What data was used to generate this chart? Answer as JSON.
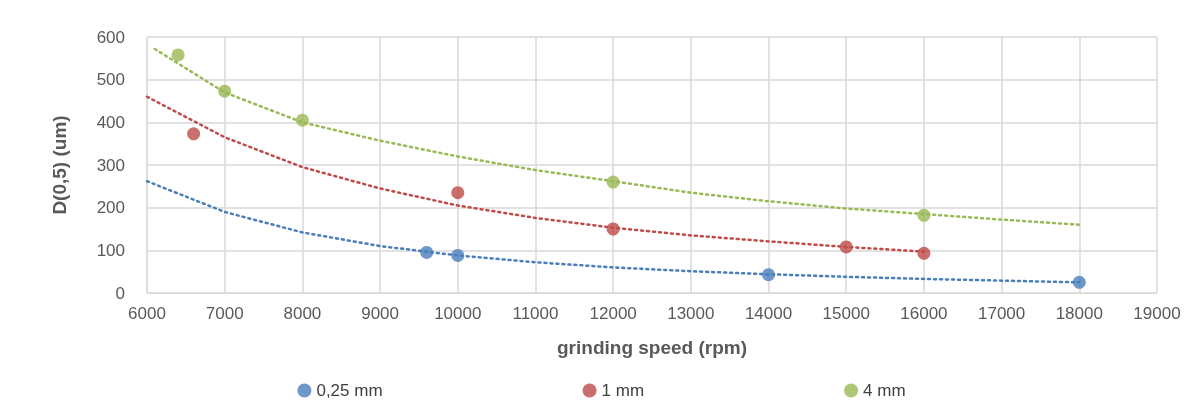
{
  "chart_data": {
    "type": "scatter",
    "xlabel": "grinding speed (rpm)",
    "ylabel": "D(0,5) (um)",
    "xlim": [
      6000,
      19000
    ],
    "xticks": [
      6000,
      7000,
      8000,
      9000,
      10000,
      11000,
      12000,
      13000,
      14000,
      15000,
      16000,
      17000,
      18000,
      19000
    ],
    "ylim": [
      0,
      600
    ],
    "yticks": [
      0,
      100,
      200,
      300,
      400,
      500,
      600
    ],
    "grid": true,
    "legend": "bottom",
    "marker": "circle",
    "series": [
      {
        "name": "0,25 mm",
        "color": "#4a7ebb",
        "x": [
          9600,
          10000,
          14000,
          18000
        ],
        "values": [
          95,
          88,
          43,
          25
        ]
      },
      {
        "name": "1 mm",
        "color": "#be4b48",
        "x": [
          6600,
          10000,
          12000,
          15000,
          16000
        ],
        "values": [
          373,
          235,
          150,
          108,
          93
        ]
      },
      {
        "name": "4 mm",
        "color": "#98b954",
        "x": [
          6400,
          7000,
          8000,
          12000,
          16000
        ],
        "values": [
          558,
          473,
          405,
          260,
          182
        ]
      },
      {
        "type": "line",
        "line_style": "dotted",
        "marker": "none",
        "color": "#4a7ebb",
        "x": [
          6000,
          7000,
          8000,
          9000,
          10000,
          11000,
          12000,
          13000,
          14000,
          15000,
          16000,
          17000,
          18000
        ],
        "values": [
          262,
          190,
          142,
          110,
          88,
          72,
          60,
          51,
          44,
          38,
          33,
          29,
          25
        ]
      },
      {
        "type": "line",
        "line_style": "dotted",
        "marker": "none",
        "color": "#be4b48",
        "x": [
          6000,
          7000,
          8000,
          9000,
          10000,
          11000,
          12000,
          13000,
          14000,
          15000,
          16000
        ],
        "values": [
          460,
          365,
          295,
          245,
          205,
          176,
          153,
          135,
          121,
          108,
          97
        ]
      },
      {
        "type": "line",
        "line_style": "dotted",
        "marker": "none",
        "color": "#98b954",
        "x": [
          6100,
          7000,
          8000,
          9000,
          10000,
          11000,
          12000,
          13000,
          14000,
          15000,
          16000,
          17000,
          18000
        ],
        "values": [
          572,
          470,
          400,
          357,
          320,
          288,
          262,
          235,
          215,
          198,
          185,
          172,
          160
        ]
      }
    ]
  }
}
